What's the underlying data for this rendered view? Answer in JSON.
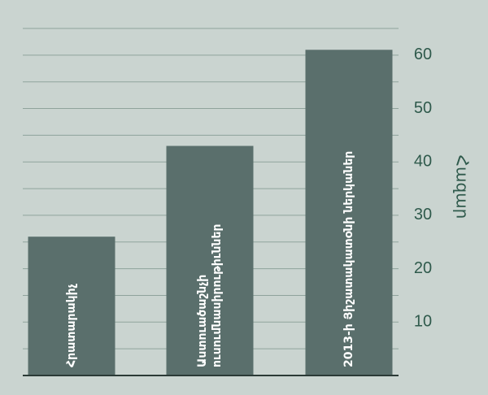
{
  "chart_data": {
    "type": "bar",
    "y_axis_label": "Հազար",
    "categories": [
      [
        "Հրատարակիչ"
      ],
      [
        "Աստուածաշնչի",
        "ուսումնասիրութիւններ"
      ],
      [
        "2013-ի Յիշատակատօնի ներկաներ"
      ]
    ],
    "values": [
      26,
      43,
      61
    ],
    "color": "#5a6f6c",
    "ylim": [
      0,
      65
    ],
    "yticks": [
      10,
      20,
      30,
      40,
      50,
      60
    ],
    "minor_yticks": [
      5,
      15,
      25,
      35,
      45,
      55,
      65
    ],
    "grid": true
  }
}
